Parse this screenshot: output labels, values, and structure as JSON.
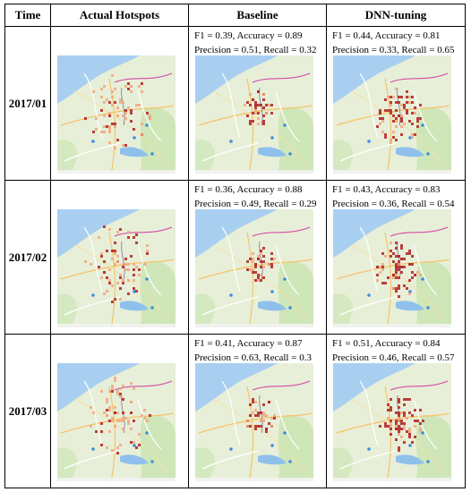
{
  "headers": [
    "Time",
    "Actual Hotspots",
    "Baseline",
    "DNN-tuning"
  ],
  "rows": [
    {
      "time": "2017/01",
      "baseline": {
        "line1": "F1 = 0.39, Accuracy = 0.89",
        "line2": "Precision = 0.51, Recall = 0.32"
      },
      "dnn": {
        "line1": "F1 = 0.44, Accuracy = 0.81",
        "line2": "Precision = 0.33, Recall = 0.65"
      }
    },
    {
      "time": "2017/02",
      "baseline": {
        "line1": "F1 = 0.36, Accuracy = 0.88",
        "line2": "Precision = 0.49, Recall = 0.29"
      },
      "dnn": {
        "line1": "F1 = 0.43, Accuracy = 0.83",
        "line2": "Precision = 0.36, Recall = 0.54"
      }
    },
    {
      "time": "2017/03",
      "baseline": {
        "line1": "F1 = 0.41, Accuracy = 0.87",
        "line2": "Precision = 0.63, Recall = 0.3"
      },
      "dnn": {
        "line1": "F1 = 0.51, Accuracy = 0.84",
        "line2": "Precision = 0.46, Recall = 0.57"
      }
    }
  ]
}
